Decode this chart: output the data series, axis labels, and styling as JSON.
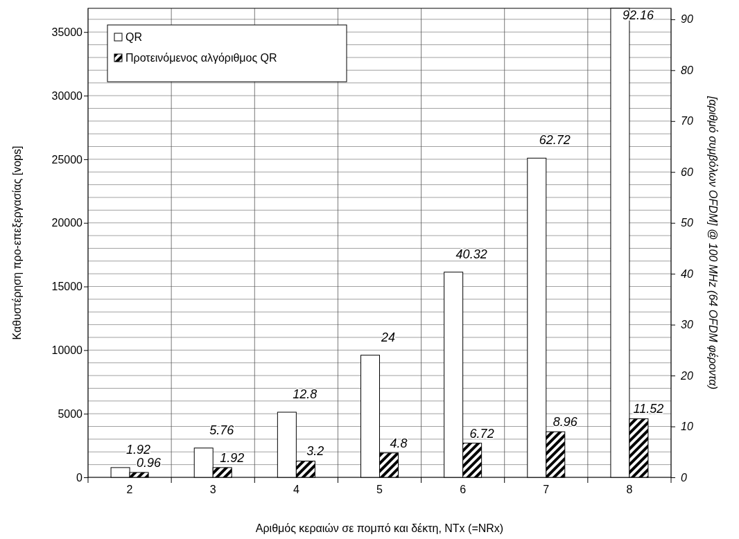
{
  "chart_data": {
    "type": "bar",
    "xlabel": "Αριθμός κεραιών σε πομπό και δέκτη, NTx (=NRx)",
    "ylabel": "Καθυστέρηση προ-επεξεργασίας [vops]",
    "y2label": "[αριθμό συμβόλων OFDM] @ 100 MHz (64 OFDM φέροντα)",
    "categories": [
      "2",
      "3",
      "4",
      "5",
      "6",
      "7",
      "8"
    ],
    "series": [
      {
        "name": "QR",
        "color": "#ffffff",
        "axis": "y2",
        "values": [
          1.92,
          5.76,
          12.8,
          24,
          40.32,
          62.72,
          92.16
        ]
      },
      {
        "name": "Προτεινόμενος αλγόριθμος QR",
        "color": "#000000",
        "axis": "y2",
        "values": [
          0.96,
          1.92,
          3.2,
          4.8,
          6.72,
          8.96,
          11.52
        ]
      }
    ],
    "ylim": [
      0,
      36864
    ],
    "yticks": [
      0,
      {
        "value": 1000,
        "label": null
      },
      {
        "value": 2000,
        "label": null
      },
      {
        "value": 3000,
        "label": null
      },
      {
        "value": 4000,
        "label": null
      },
      5000,
      {
        "value": 6000,
        "label": null
      },
      {
        "value": 7000,
        "label": null
      },
      {
        "value": 8000,
        "label": null
      },
      {
        "value": 9000,
        "label": null
      },
      10000,
      {
        "value": 11000,
        "label": null
      },
      {
        "value": 12000,
        "label": null
      },
      {
        "value": 13000,
        "label": null
      },
      {
        "value": 14000,
        "label": null
      },
      15000,
      {
        "value": 16000,
        "label": null
      },
      {
        "value": 17000,
        "label": null
      },
      {
        "value": 18000,
        "label": null
      },
      {
        "value": 19000,
        "label": null
      },
      20000,
      {
        "value": 21000,
        "label": null
      },
      {
        "value": 22000,
        "label": null
      },
      {
        "value": 23000,
        "label": null
      },
      {
        "value": 24000,
        "label": null
      },
      25000,
      {
        "value": 26000,
        "label": null
      },
      {
        "value": 27000,
        "label": null
      },
      {
        "value": 28000,
        "label": null
      },
      {
        "value": 29000,
        "label": null
      },
      30000,
      {
        "value": 31000,
        "label": null
      },
      {
        "value": 32000,
        "label": null
      },
      {
        "value": 33000,
        "label": null
      },
      {
        "value": 34000,
        "label": null
      },
      35000,
      {
        "value": 36000,
        "label": null
      }
    ],
    "y2lim": [
      0,
      92.16
    ],
    "y2ticks": [
      0,
      10,
      20,
      30,
      40,
      50,
      60,
      70,
      80,
      90
    ],
    "grid": true,
    "legend": "top left",
    "data_labels": true
  }
}
